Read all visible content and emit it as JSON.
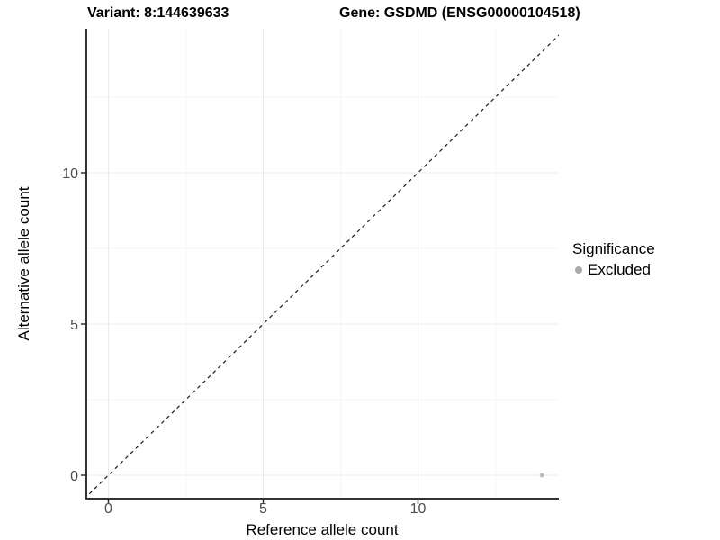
{
  "header": {
    "variant_title": "Variant: 8:144639633",
    "gene_title": "Gene: GSDMD (ENSG00000104518)"
  },
  "chart_data": {
    "type": "scatter",
    "xlabel": "Reference allele count",
    "ylabel": "Alternative allele count",
    "x_ticks": [
      0,
      5,
      10
    ],
    "y_ticks": [
      0,
      5,
      10
    ],
    "x_minor_ticks": [
      2.5,
      7.5,
      12.5
    ],
    "y_minor_ticks": [
      2.5,
      7.5,
      12.5
    ],
    "xlim": [
      -0.72,
      14.56
    ],
    "ylim": [
      -0.78,
      14.76
    ],
    "grid": true,
    "series": [
      {
        "name": "Excluded",
        "color": "#bdbdbd",
        "points": [
          {
            "x": 14,
            "y": 0
          }
        ]
      }
    ],
    "reference_line": {
      "type": "identity",
      "style": "dashed",
      "color": "#1a1a1a"
    },
    "legend": {
      "title": "Significance",
      "position": "right",
      "items": [
        {
          "label": "Excluded",
          "color": "#a9a9a9"
        }
      ]
    },
    "colors": {
      "background": "#ffffff",
      "grid_major": "#ebebeb",
      "grid_minor": "#f6f6f6",
      "axis_line": "#333333",
      "tick_mark": "#333333",
      "tick_label": "#4d4d4d",
      "axis_title": "#000000",
      "title": "#000000"
    }
  }
}
